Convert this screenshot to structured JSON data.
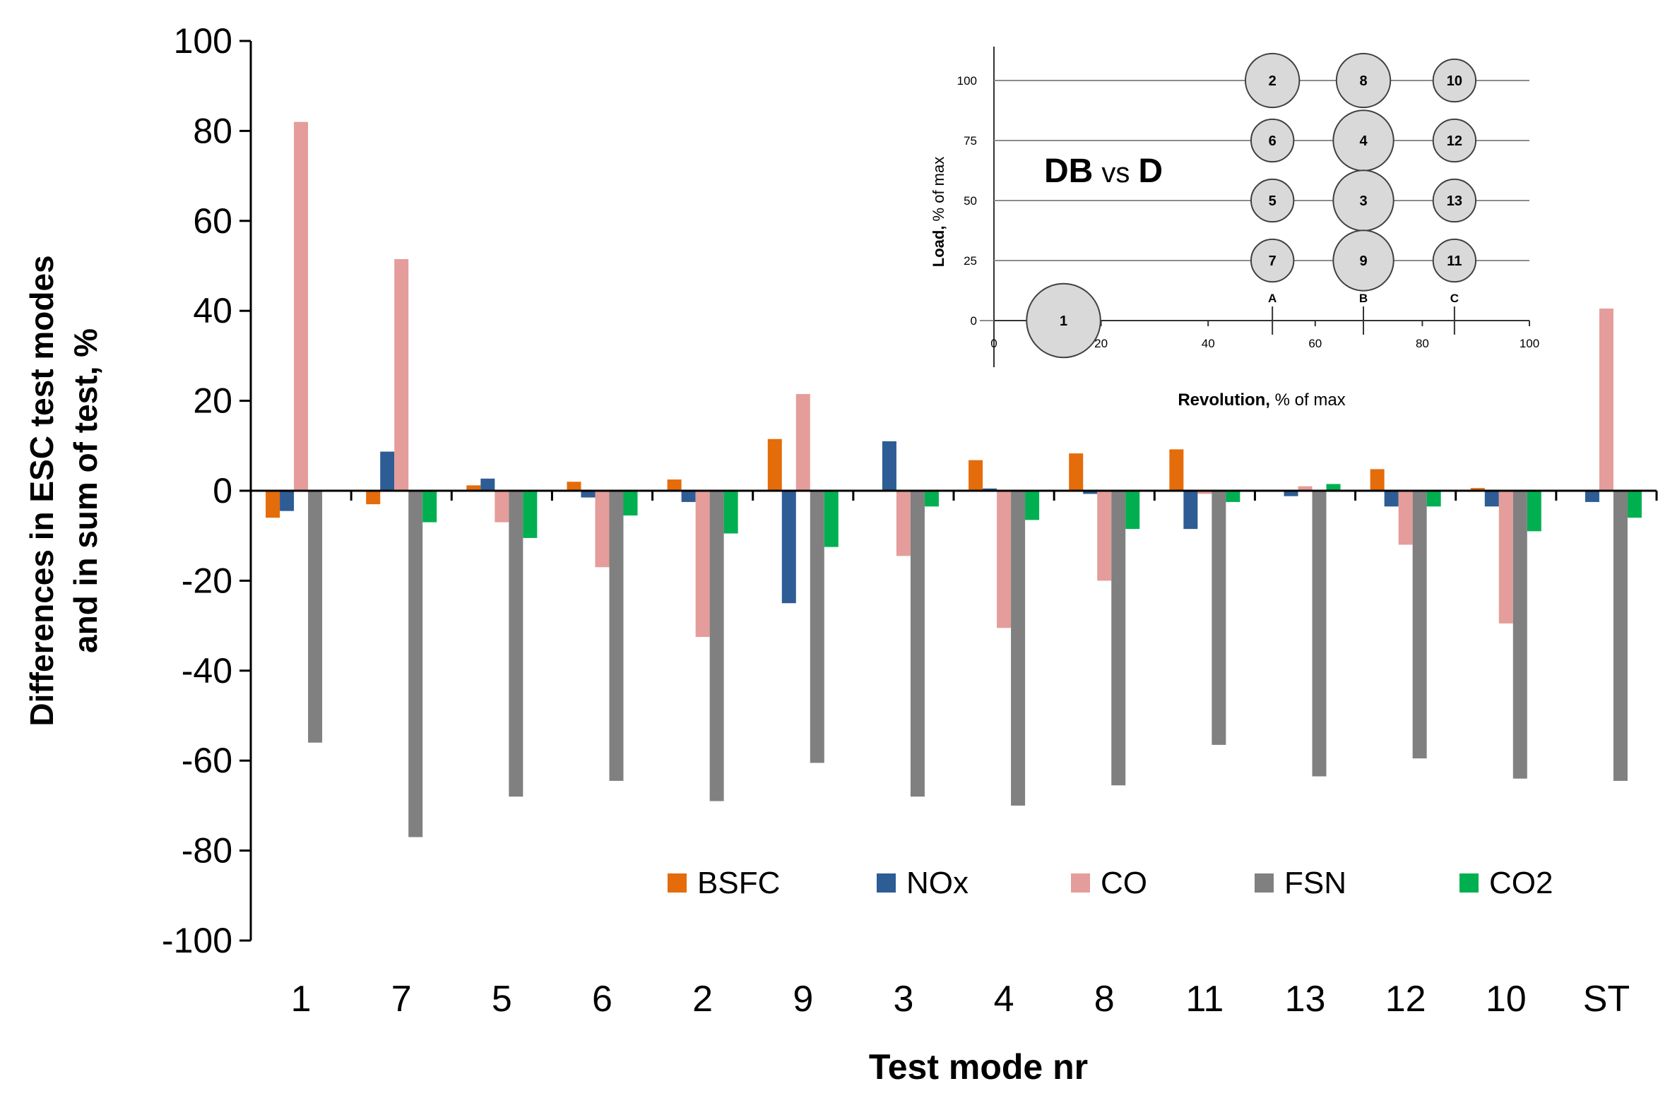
{
  "chart_data": {
    "type": "bar",
    "xlabel": "Test mode nr",
    "ylabel_line1": "Differences in ESC test modes",
    "ylabel_line2": "and in sum of test, %",
    "ylim": [
      -100,
      100
    ],
    "yticks": [
      100,
      80,
      60,
      40,
      20,
      0,
      -20,
      -40,
      -60,
      -80,
      -100
    ],
    "categories": [
      "1",
      "7",
      "5",
      "6",
      "2",
      "9",
      "3",
      "4",
      "8",
      "11",
      "13",
      "12",
      "10",
      "ST"
    ],
    "series": [
      {
        "name": "BSFC",
        "color": "#e46c0a",
        "values": [
          -6,
          -3,
          1.2,
          2,
          2.5,
          11.5,
          0,
          6.8,
          8.3,
          9.2,
          0,
          4.8,
          0.6,
          0
        ]
      },
      {
        "name": "NOx",
        "color": "#2e5c95",
        "values": [
          -4.5,
          8.7,
          2.7,
          -1.5,
          -2.5,
          -25,
          11,
          0.5,
          -0.7,
          -8.5,
          -1.2,
          -3.5,
          -3.5,
          -2.5
        ]
      },
      {
        "name": "CO",
        "color": "#e49d9a",
        "values": [
          82,
          51.5,
          -7,
          -17,
          -32.5,
          21.5,
          -14.5,
          -30.5,
          -20,
          -0.7,
          1,
          -12,
          -29.5,
          40.5
        ]
      },
      {
        "name": "FSN",
        "color": "#808080",
        "values": [
          -56,
          -77,
          -68,
          -64.5,
          -69,
          -60.5,
          -68,
          -70,
          -65.5,
          -56.5,
          -63.5,
          -59.5,
          -64,
          -64.5
        ]
      },
      {
        "name": "CO2",
        "color": "#00b050",
        "values": [
          0,
          -7,
          -10.5,
          -5.5,
          -9.5,
          -12.5,
          -3.5,
          -6.5,
          -8.5,
          -2.5,
          1.5,
          -3.5,
          -9,
          -6
        ]
      }
    ],
    "legend_position": "bottom-right",
    "inset": {
      "title_left": "DB",
      "title_mid": "vs",
      "title_right": "D",
      "xlabel_bold": "Revolution,",
      "xlabel_rest": " % of max",
      "ylabel_bold": "Load,",
      "ylabel_rest": " % of max",
      "xticks": [
        "0",
        "20",
        "40",
        "60",
        "80",
        "100"
      ],
      "yticks": [
        "100",
        "75",
        "50",
        "25",
        "0"
      ],
      "speed_markers": [
        {
          "label": "A",
          "x": 52
        },
        {
          "label": "B",
          "x": 69
        },
        {
          "label": "C",
          "x": 86
        }
      ],
      "modes": [
        {
          "label": "1",
          "x": 13,
          "y": 0,
          "weight": 15
        },
        {
          "label": "2",
          "x": 52,
          "y": 100,
          "weight": 8
        },
        {
          "label": "8",
          "x": 69,
          "y": 100,
          "weight": 8
        },
        {
          "label": "10",
          "x": 86,
          "y": 100,
          "weight": 5
        },
        {
          "label": "6",
          "x": 52,
          "y": 75,
          "weight": 5
        },
        {
          "label": "4",
          "x": 69,
          "y": 75,
          "weight": 10
        },
        {
          "label": "12",
          "x": 86,
          "y": 75,
          "weight": 5
        },
        {
          "label": "5",
          "x": 52,
          "y": 50,
          "weight": 5
        },
        {
          "label": "3",
          "x": 69,
          "y": 50,
          "weight": 10
        },
        {
          "label": "13",
          "x": 86,
          "y": 50,
          "weight": 5
        },
        {
          "label": "7",
          "x": 52,
          "y": 25,
          "weight": 5
        },
        {
          "label": "9",
          "x": 69,
          "y": 25,
          "weight": 10
        },
        {
          "label": "11",
          "x": 86,
          "y": 25,
          "weight": 5
        }
      ]
    }
  }
}
